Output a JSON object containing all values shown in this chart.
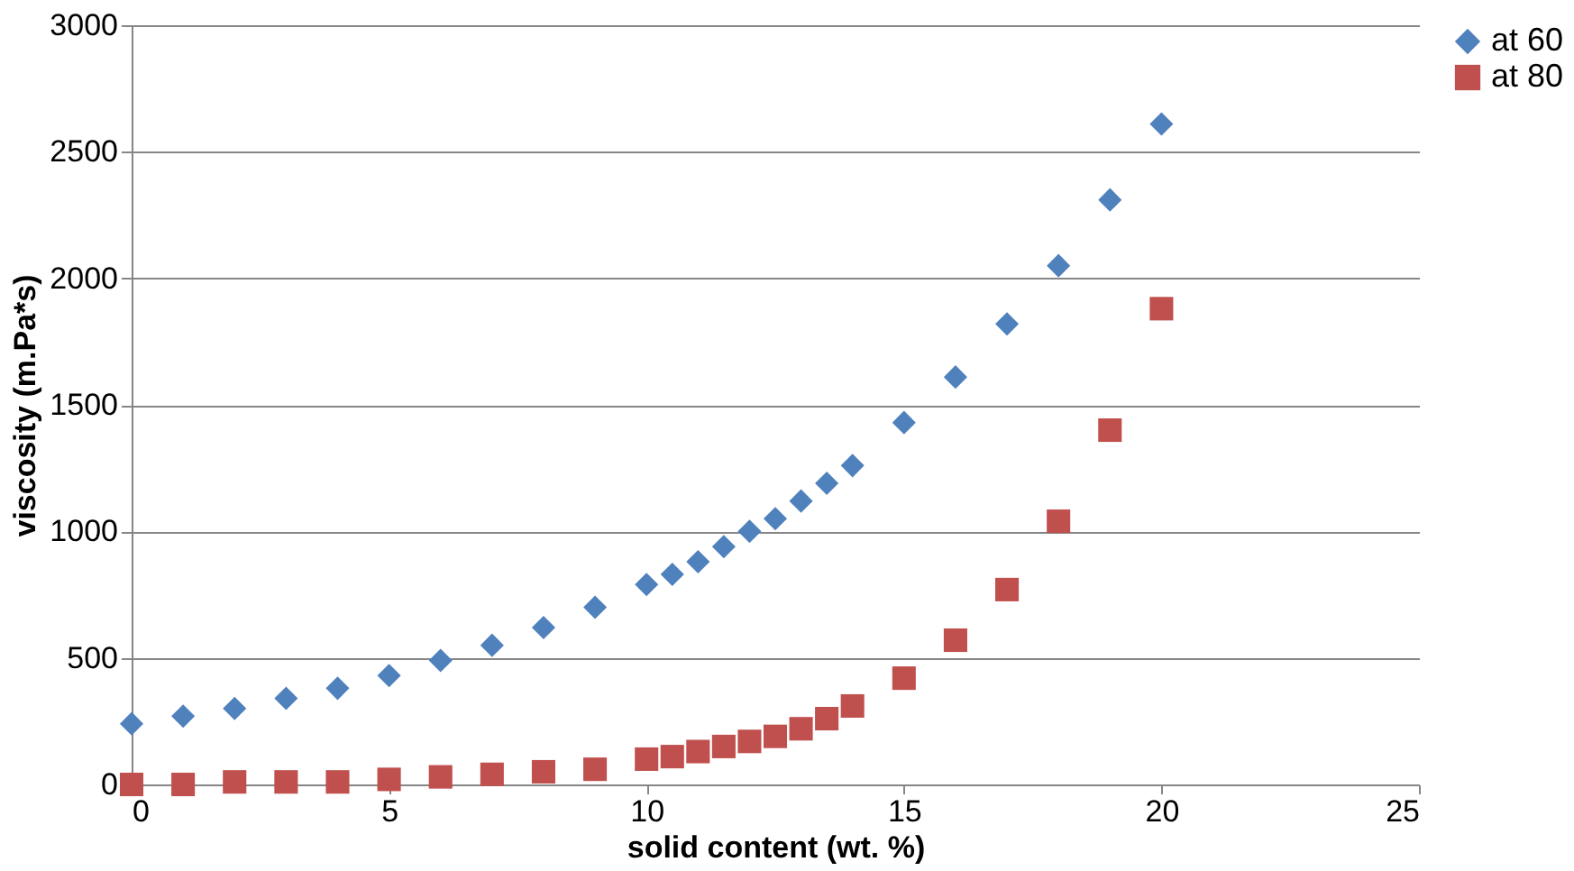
{
  "chart_data": {
    "type": "scatter",
    "xlabel": "solid content (wt. %)",
    "ylabel": "viscosity (m.Pa*s)",
    "xlim": [
      0,
      25
    ],
    "xticks": [
      0,
      5,
      10,
      15,
      20,
      25
    ],
    "ylim": [
      0,
      3000
    ],
    "yticks": [
      0,
      500,
      1000,
      1500,
      2000,
      2500,
      3000
    ],
    "grid": "y",
    "legend": "right",
    "series": [
      {
        "name": "at 60",
        "color": "#4f81bd",
        "marker": "diamond",
        "x": [
          0,
          1,
          2,
          3,
          4,
          5,
          6,
          7,
          8,
          9,
          10,
          10.5,
          11,
          11.5,
          12,
          12.5,
          13,
          13.5,
          14,
          15,
          16,
          17,
          18,
          19,
          20
        ],
        "values": [
          240,
          270,
          300,
          340,
          380,
          430,
          490,
          550,
          620,
          700,
          790,
          830,
          880,
          940,
          1000,
          1050,
          1120,
          1190,
          1260,
          1430,
          1610,
          1820,
          2050,
          2310,
          2610
        ]
      },
      {
        "name": "at 80",
        "color": "#c0504d",
        "marker": "square",
        "x": [
          0,
          1,
          2,
          3,
          4,
          5,
          6,
          7,
          8,
          9,
          10,
          10.5,
          11,
          11.5,
          12,
          12.5,
          13,
          13.5,
          14,
          15,
          16,
          17,
          18,
          19,
          20
        ],
        "values": [
          0,
          0,
          10,
          10,
          10,
          20,
          30,
          40,
          50,
          60,
          100,
          110,
          130,
          150,
          170,
          190,
          220,
          260,
          310,
          420,
          570,
          770,
          1040,
          1400,
          1880
        ]
      }
    ]
  }
}
